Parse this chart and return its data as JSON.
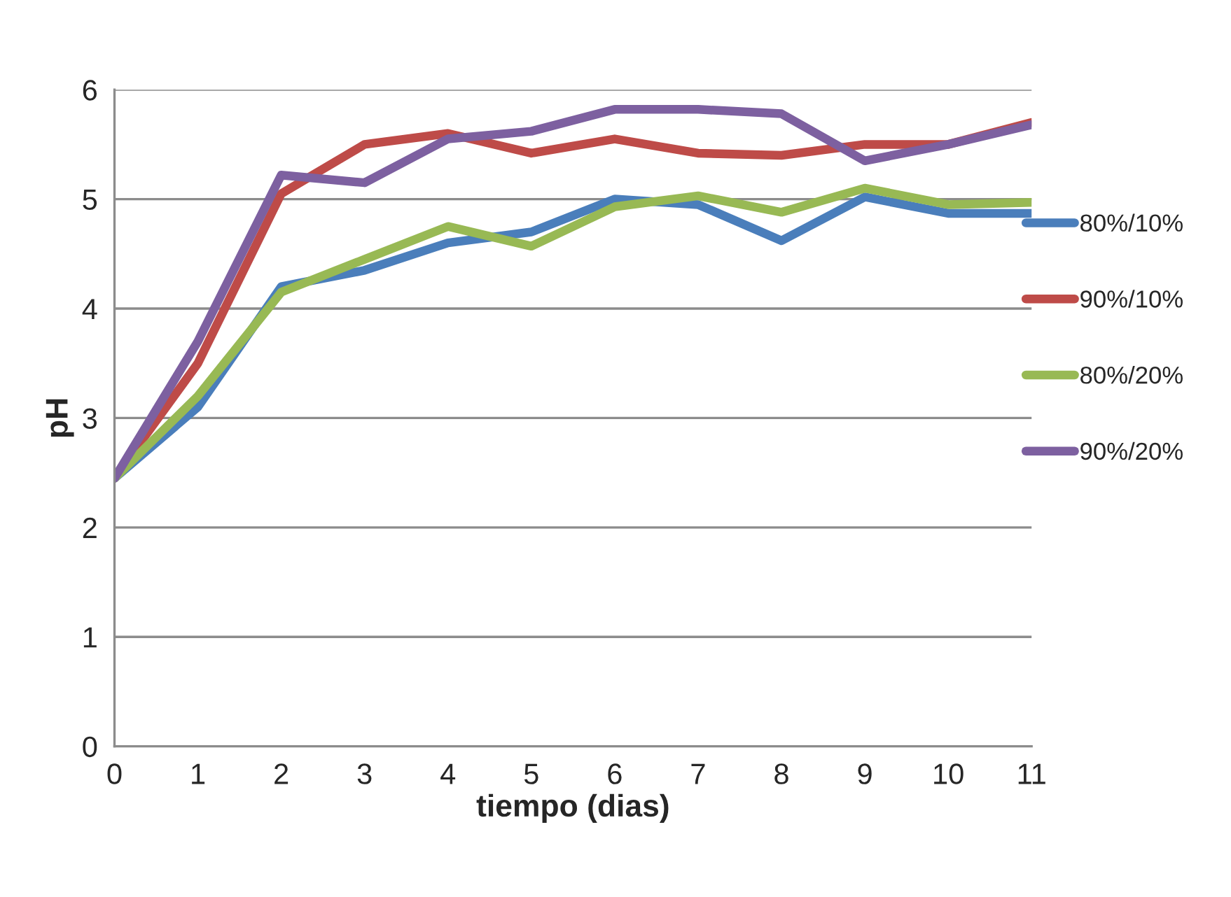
{
  "chart_data": {
    "type": "line",
    "xlabel": "tiempo (dias)",
    "ylabel": "pH",
    "x": [
      0,
      1,
      2,
      3,
      4,
      5,
      6,
      7,
      8,
      9,
      10,
      11
    ],
    "series": [
      {
        "name": "80%/10%",
        "color": "#4a7ebb",
        "values": [
          2.45,
          3.1,
          4.2,
          4.35,
          4.6,
          4.7,
          5.0,
          4.95,
          4.62,
          5.02,
          4.87,
          4.87
        ]
      },
      {
        "name": "90%/10%",
        "color": "#be4b48",
        "values": [
          2.45,
          3.5,
          5.05,
          5.5,
          5.6,
          5.42,
          5.55,
          5.42,
          5.4,
          5.5,
          5.5,
          5.7
        ]
      },
      {
        "name": "80%/20%",
        "color": "#98b954",
        "values": [
          2.45,
          3.2,
          4.15,
          4.45,
          4.75,
          4.57,
          4.93,
          5.03,
          4.88,
          5.1,
          4.95,
          4.97
        ]
      },
      {
        "name": "90%/20%",
        "color": "#7d60a0",
        "values": [
          2.45,
          3.7,
          5.22,
          5.15,
          5.55,
          5.62,
          5.82,
          5.82,
          5.78,
          5.35,
          5.5,
          5.68
        ]
      }
    ],
    "xlim": [
      0,
      11
    ],
    "xticks": [
      0,
      1,
      2,
      3,
      4,
      5,
      6,
      7,
      8,
      9,
      10,
      11
    ],
    "ylim": [
      0,
      6
    ],
    "yticks": [
      0,
      1,
      2,
      3,
      4,
      5,
      6
    ],
    "grid": "y",
    "legend": "right",
    "marker": "none",
    "line_style": "solid"
  }
}
